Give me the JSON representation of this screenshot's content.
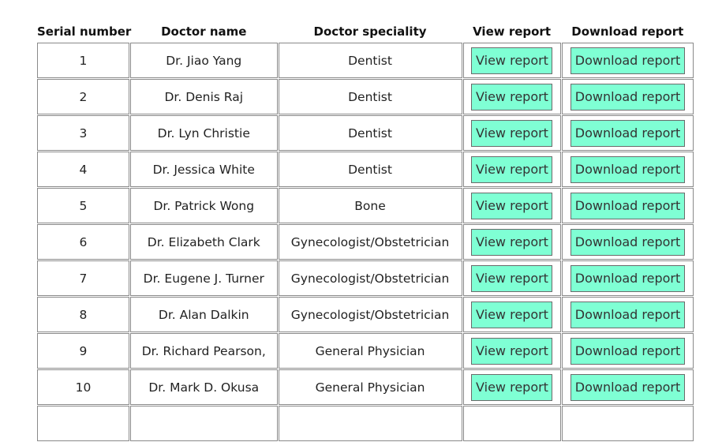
{
  "table": {
    "headers": {
      "serial": "Serial number",
      "name": "Doctor name",
      "speciality": "Doctor speciality",
      "view": "View report",
      "download": "Download report"
    },
    "rows": [
      {
        "serial": "1",
        "name": "Dr. Jiao Yang",
        "speciality": "Dentist",
        "view_label": "View report",
        "download_label": "Download report"
      },
      {
        "serial": "2",
        "name": "Dr. Denis Raj",
        "speciality": "Dentist",
        "view_label": "View report",
        "download_label": "Download report"
      },
      {
        "serial": "3",
        "name": "Dr. Lyn Christie",
        "speciality": "Dentist",
        "view_label": "View report",
        "download_label": "Download report"
      },
      {
        "serial": "4",
        "name": "Dr. Jessica White",
        "speciality": "Dentist",
        "view_label": "View report",
        "download_label": "Download report"
      },
      {
        "serial": "5",
        "name": "Dr. Patrick Wong",
        "speciality": "Bone",
        "view_label": "View report",
        "download_label": "Download report"
      },
      {
        "serial": "6",
        "name": "Dr. Elizabeth Clark",
        "speciality": "Gynecologist/Obstetrician",
        "view_label": "View report",
        "download_label": "Download report"
      },
      {
        "serial": "7",
        "name": "Dr. Eugene J. Turner",
        "speciality": "Gynecologist/Obstetrician",
        "view_label": "View report",
        "download_label": "Download report"
      },
      {
        "serial": "8",
        "name": "Dr. Alan Dalkin",
        "speciality": "Gynecologist/Obstetrician",
        "view_label": "View report",
        "download_label": "Download report"
      },
      {
        "serial": "9",
        "name": "Dr. Richard Pearson,",
        "speciality": "General Physician",
        "view_label": "View report",
        "download_label": "Download report"
      },
      {
        "serial": "10",
        "name": "Dr. Mark D. Okusa",
        "speciality": "General Physician",
        "view_label": "View report",
        "download_label": "Download report"
      },
      {
        "serial": "",
        "name": "",
        "speciality": "",
        "view_label": "",
        "download_label": ""
      }
    ]
  },
  "colors": {
    "button_bg": "#7fffd4",
    "border": "#8a8a8a"
  }
}
